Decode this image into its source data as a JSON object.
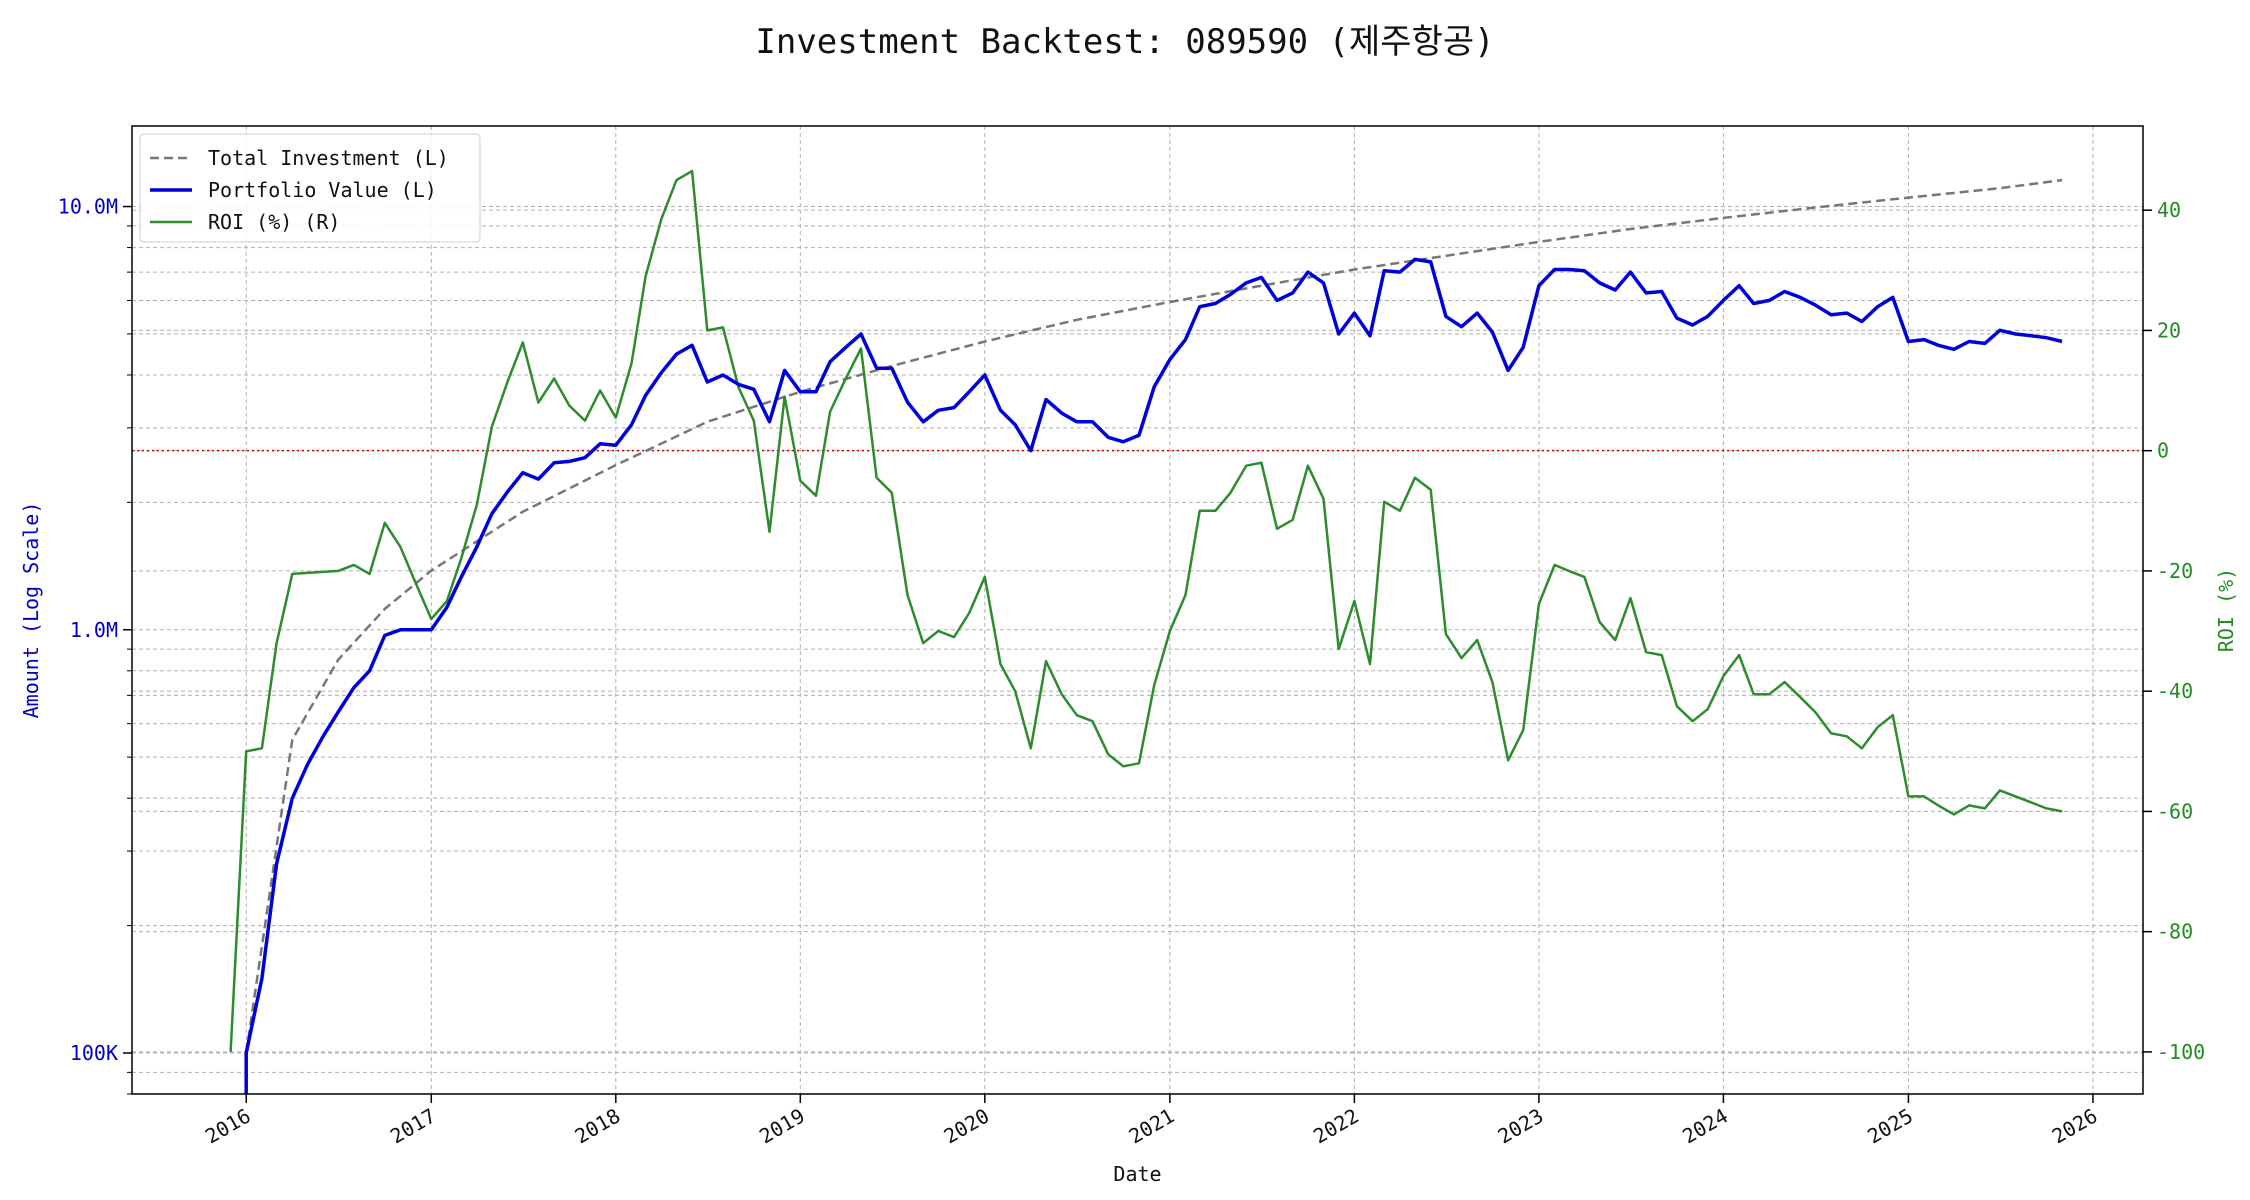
{
  "chart_data": {
    "type": "line",
    "title": "Investment Backtest: 089590 (제주항공)",
    "xlabel": "Date",
    "ylabel_left": "Amount (Log Scale)",
    "ylabel_right": "ROI (%)",
    "left_axis": {
      "scale": "log",
      "range": [
        80000,
        15500000
      ],
      "ticks": [
        {
          "value": 100000,
          "label": "100K"
        },
        {
          "value": 1000000,
          "label": "1.0M"
        },
        {
          "value": 10000000,
          "label": "10.0M"
        }
      ],
      "color": "#0000cc"
    },
    "right_axis": {
      "scale": "linear",
      "range": [
        -107,
        54
      ],
      "ticks": [
        -100,
        -80,
        -60,
        -40,
        -20,
        0,
        20,
        40
      ],
      "color": "#228b22"
    },
    "x_axis": {
      "range": [
        "2015-05-20",
        "2026-04-10"
      ],
      "ticks": [
        "2016",
        "2017",
        "2018",
        "2019",
        "2020",
        "2021",
        "2022",
        "2023",
        "2024",
        "2025",
        "2026"
      ]
    },
    "grid": true,
    "legend_position": "top-left",
    "zero_line": {
      "value": 0,
      "axis": "right",
      "color": "#cc0000"
    },
    "series": [
      {
        "name": "Total Investment (L)",
        "axis": "left",
        "style": "dashed",
        "color": "#777777",
        "x": [
          "2016-01-01",
          "2016-04-01",
          "2016-07-01",
          "2016-10-01",
          "2017-01-01",
          "2017-07-01",
          "2018-01-01",
          "2018-07-01",
          "2019-01-01",
          "2019-07-01",
          "2020-01-01",
          "2020-07-01",
          "2021-01-01",
          "2021-07-01",
          "2022-01-01",
          "2022-07-01",
          "2023-01-01",
          "2023-07-01",
          "2024-01-01",
          "2024-07-01",
          "2025-01-01",
          "2025-07-01",
          "2025-11-01"
        ],
        "values": [
          100000,
          550000,
          850000,
          1120000,
          1380000,
          1900000,
          2450000,
          3100000,
          3650000,
          4200000,
          4800000,
          5400000,
          5950000,
          6500000,
          7100000,
          7650000,
          8250000,
          8850000,
          9400000,
          9950000,
          10500000,
          11050000,
          11550000
        ]
      },
      {
        "name": "Portfolio Value (L)",
        "axis": "left",
        "style": "solid",
        "color": "#0000dd",
        "x": [
          "2016-01-01",
          "2016-02-01",
          "2016-03-01",
          "2016-04-01",
          "2016-05-01",
          "2016-06-01",
          "2016-07-01",
          "2016-08-01",
          "2016-09-01",
          "2016-10-01",
          "2016-11-01",
          "2016-12-01",
          "2017-01-01",
          "2017-02-01",
          "2017-03-01",
          "2017-04-01",
          "2017-05-01",
          "2017-06-01",
          "2017-07-01",
          "2017-08-01",
          "2017-09-01",
          "2017-10-01",
          "2017-11-01",
          "2017-12-01",
          "2018-01-01",
          "2018-02-01",
          "2018-03-01",
          "2018-04-01",
          "2018-05-01",
          "2018-06-01",
          "2018-07-01",
          "2018-08-01",
          "2018-09-01",
          "2018-10-01",
          "2018-11-01",
          "2018-12-01",
          "2019-01-01",
          "2019-02-01",
          "2019-03-01",
          "2019-04-01",
          "2019-05-01",
          "2019-06-01",
          "2019-07-01",
          "2019-08-01",
          "2019-09-01",
          "2019-10-01",
          "2019-11-01",
          "2019-12-01",
          "2020-01-01",
          "2020-02-01",
          "2020-03-01",
          "2020-04-01",
          "2020-05-01",
          "2020-06-01",
          "2020-07-01",
          "2020-08-01",
          "2020-09-01",
          "2020-10-01",
          "2020-11-01",
          "2020-12-01",
          "2021-01-01",
          "2021-02-01",
          "2021-03-01",
          "2021-04-01",
          "2021-05-01",
          "2021-06-01",
          "2021-07-01",
          "2021-08-01",
          "2021-09-01",
          "2021-10-01",
          "2021-11-01",
          "2021-12-01",
          "2022-01-01",
          "2022-02-01",
          "2022-03-01",
          "2022-04-01",
          "2022-05-01",
          "2022-06-01",
          "2022-07-01",
          "2022-08-01",
          "2022-09-01",
          "2022-10-01",
          "2022-11-01",
          "2022-12-01",
          "2023-01-01",
          "2023-02-01",
          "2023-03-01",
          "2023-04-01",
          "2023-05-01",
          "2023-06-01",
          "2023-07-01",
          "2023-08-01",
          "2023-09-01",
          "2023-10-01",
          "2023-11-01",
          "2023-12-01",
          "2024-01-01",
          "2024-02-01",
          "2024-03-01",
          "2024-04-01",
          "2024-05-01",
          "2024-06-01",
          "2024-07-01",
          "2024-08-01",
          "2024-09-01",
          "2024-10-01",
          "2024-11-01",
          "2024-12-01",
          "2025-01-01",
          "2025-02-01",
          "2025-03-01",
          "2025-04-01",
          "2025-05-01",
          "2025-06-01",
          "2025-07-01",
          "2025-08-01",
          "2025-09-01",
          "2025-10-01",
          "2025-11-01"
        ],
        "values": [
          100000,
          150000,
          280000,
          400000,
          480000,
          560000,
          640000,
          730000,
          800000,
          970000,
          1000000,
          1000000,
          1000000,
          1130000,
          1330000,
          1570000,
          1880000,
          2120000,
          2350000,
          2270000,
          2480000,
          2500000,
          2550000,
          2750000,
          2730000,
          3050000,
          3580000,
          4050000,
          4480000,
          4700000,
          3850000,
          4000000,
          3800000,
          3700000,
          3100000,
          4100000,
          3650000,
          3650000,
          4300000,
          4650000,
          5000000,
          4150000,
          4150000,
          3450000,
          3100000,
          3300000,
          3350000,
          3650000,
          4000000,
          3300000,
          3050000,
          2650000,
          3500000,
          3250000,
          3100000,
          3100000,
          2850000,
          2780000,
          2880000,
          3750000,
          4350000,
          4850000,
          5800000,
          5900000,
          6200000,
          6600000,
          6800000,
          6000000,
          6250000,
          7000000,
          6600000,
          5000000,
          5600000,
          4950000,
          7050000,
          7000000,
          7500000,
          7400000,
          5500000,
          5200000,
          5600000,
          5050000,
          4100000,
          4650000,
          6500000,
          7100000,
          7100000,
          7050000,
          6600000,
          6350000,
          7000000,
          6250000,
          6300000,
          5450000,
          5250000,
          5500000,
          6000000,
          6500000,
          5900000,
          6000000,
          6300000,
          6100000,
          5850000,
          5550000,
          5600000,
          5350000,
          5800000,
          6100000,
          4800000,
          4850000,
          4700000,
          4600000,
          4800000,
          4750000,
          5100000,
          5000000,
          4950000,
          4900000,
          4800000
        ]
      },
      {
        "name": "ROI (%) (R)",
        "axis": "right",
        "style": "solid",
        "color": "#2e8b2e",
        "x": [
          "2015-12-01",
          "2016-01-01",
          "2016-02-01",
          "2016-03-01",
          "2016-04-01",
          "2016-07-01",
          "2016-08-01",
          "2016-09-01",
          "2016-10-01",
          "2016-11-01",
          "2016-12-01",
          "2017-01-01",
          "2017-02-01",
          "2017-03-01",
          "2017-04-01",
          "2017-05-01",
          "2017-06-01",
          "2017-07-01",
          "2017-08-01",
          "2017-09-01",
          "2017-10-01",
          "2017-11-01",
          "2017-12-01",
          "2018-01-01",
          "2018-02-01",
          "2018-03-01",
          "2018-04-01",
          "2018-05-01",
          "2018-06-01",
          "2018-07-01",
          "2018-08-01",
          "2018-09-01",
          "2018-10-01",
          "2018-11-01",
          "2018-12-01",
          "2019-01-01",
          "2019-02-01",
          "2019-03-01",
          "2019-04-01",
          "2019-05-01",
          "2019-06-01",
          "2019-07-01",
          "2019-08-01",
          "2019-09-01",
          "2019-10-01",
          "2019-11-01",
          "2019-12-01",
          "2020-01-01",
          "2020-02-01",
          "2020-03-01",
          "2020-04-01",
          "2020-05-01",
          "2020-06-01",
          "2020-07-01",
          "2020-08-01",
          "2020-09-01",
          "2020-10-01",
          "2020-11-01",
          "2020-12-01",
          "2021-01-01",
          "2021-02-01",
          "2021-03-01",
          "2021-04-01",
          "2021-05-01",
          "2021-06-01",
          "2021-07-01",
          "2021-08-01",
          "2021-09-01",
          "2021-10-01",
          "2021-11-01",
          "2021-12-01",
          "2022-01-01",
          "2022-02-01",
          "2022-03-01",
          "2022-04-01",
          "2022-05-01",
          "2022-06-01",
          "2022-07-01",
          "2022-08-01",
          "2022-09-01",
          "2022-10-01",
          "2022-11-01",
          "2022-12-01",
          "2023-01-01",
          "2023-02-01",
          "2023-03-01",
          "2023-04-01",
          "2023-05-01",
          "2023-06-01",
          "2023-07-01",
          "2023-08-01",
          "2023-09-01",
          "2023-10-01",
          "2023-11-01",
          "2023-12-01",
          "2024-01-01",
          "2024-02-01",
          "2024-03-01",
          "2024-04-01",
          "2024-05-01",
          "2024-06-01",
          "2024-07-01",
          "2024-08-01",
          "2024-09-01",
          "2024-10-01",
          "2024-11-01",
          "2024-12-01",
          "2025-01-01",
          "2025-02-01",
          "2025-03-01",
          "2025-04-01",
          "2025-05-01",
          "2025-06-01",
          "2025-07-01",
          "2025-08-01",
          "2025-09-01",
          "2025-10-01",
          "2025-11-01"
        ],
        "values": [
          -100,
          -50,
          -49.5,
          -32,
          -20.5,
          -20,
          -19,
          -20.5,
          -12,
          -16,
          -22,
          -28,
          -25,
          -18,
          -9,
          4,
          11.5,
          18,
          8,
          12,
          7.5,
          5,
          10,
          5.5,
          14.5,
          29,
          38.5,
          45,
          46.5,
          20,
          20.5,
          10.5,
          5,
          -13.5,
          9,
          -5,
          -7.5,
          6.5,
          12,
          17,
          -4.5,
          -7,
          -24,
          -32,
          -30,
          -31,
          -27,
          -21,
          -35.5,
          -40,
          -49.5,
          -35,
          -40.5,
          -44,
          -45,
          -50.5,
          -52.5,
          -52,
          -39,
          -30,
          -24,
          -10,
          -10,
          -7,
          -2.5,
          -2,
          -13,
          -11.5,
          -2.5,
          -8,
          -33,
          -25,
          -35.5,
          -8.5,
          -10,
          -4.5,
          -6.5,
          -30.5,
          -34.5,
          -31.5,
          -38.5,
          -51.5,
          -46.5,
          -25.5,
          -19,
          -20,
          -21,
          -28.5,
          -31.5,
          -24.5,
          -33.5,
          -34,
          -42.5,
          -45,
          -43,
          -37.5,
          -34,
          -40.5,
          -40.5,
          -38.5,
          -41,
          -43.5,
          -47,
          -47.5,
          -49.5,
          -46,
          -44,
          -57.5,
          -57.5,
          -59,
          -60.5,
          -59,
          -59.5,
          -56.5,
          -57.5,
          -58.5,
          -59.5,
          -60
        ]
      }
    ]
  }
}
